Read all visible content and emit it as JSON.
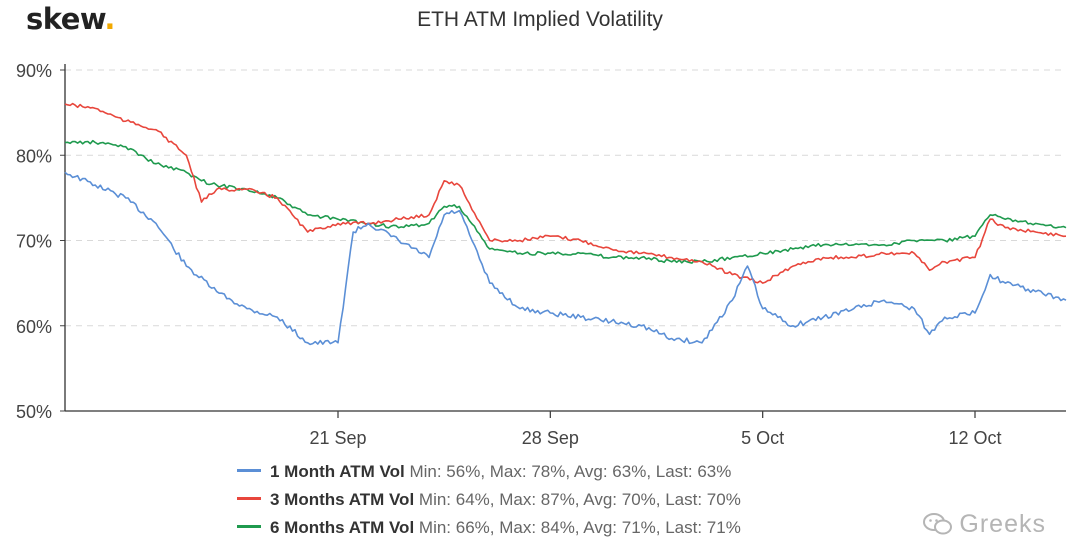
{
  "brand": {
    "name": "skew",
    "dot": "."
  },
  "watermark": {
    "text": "Greeks",
    "icon": "wechat-icon"
  },
  "colors": {
    "series1": "#5b8fd6",
    "series2": "#e8463c",
    "series3": "#1f9a4e",
    "grid": "#d9d9d9",
    "axis": "#333333"
  },
  "chart_data": {
    "type": "line",
    "title": "ETH ATM Implied Volatility",
    "y_axis": {
      "ticks": [
        "50%",
        "60%",
        "70%",
        "80%",
        "90%"
      ],
      "min": 50,
      "max": 90
    },
    "x_axis": {
      "start": "2020-09-12",
      "end": "2020-10-15",
      "tick_labels": [
        "21 Sep",
        "28 Sep",
        "5 Oct",
        "12 Oct"
      ],
      "tick_dates": [
        "2020-09-21",
        "2020-09-28",
        "2020-10-05",
        "2020-10-12"
      ]
    },
    "grid": true,
    "legend_position": "bottom",
    "series": [
      {
        "name": "1 Month ATM Vol",
        "stats": "Min: 56%, Max: 78%, Avg: 63%, Last: 63%",
        "points": [
          [
            "2020-09-12",
            78
          ],
          [
            "2020-09-13",
            76.5
          ],
          [
            "2020-09-14",
            75
          ],
          [
            "2020-09-15",
            72
          ],
          [
            "2020-09-16",
            67
          ],
          [
            "2020-09-17",
            64
          ],
          [
            "2020-09-18",
            62
          ],
          [
            "2020-09-19",
            61
          ],
          [
            "2020-09-20",
            58
          ],
          [
            "2020-09-21",
            58
          ],
          [
            "2020-09-21 12:00",
            71
          ],
          [
            "2020-09-22",
            72
          ],
          [
            "2020-09-23",
            70
          ],
          [
            "2020-09-24",
            68
          ],
          [
            "2020-09-24 12:00",
            73
          ],
          [
            "2020-09-25",
            73.5
          ],
          [
            "2020-09-26",
            65
          ],
          [
            "2020-09-27",
            62
          ],
          [
            "2020-09-28",
            61.5
          ],
          [
            "2020-09-29",
            61
          ],
          [
            "2020-09-30",
            60.5
          ],
          [
            "2020-10-01",
            60
          ],
          [
            "2020-10-02",
            58.5
          ],
          [
            "2020-10-03",
            58
          ],
          [
            "2020-10-04",
            63
          ],
          [
            "2020-10-04 12:00",
            67
          ],
          [
            "2020-10-05",
            62
          ],
          [
            "2020-10-06",
            60
          ],
          [
            "2020-10-07",
            61
          ],
          [
            "2020-10-08",
            62
          ],
          [
            "2020-10-09",
            63
          ],
          [
            "2020-10-10",
            62
          ],
          [
            "2020-10-10 12:00",
            59
          ],
          [
            "2020-10-11",
            61
          ],
          [
            "2020-10-12",
            61.5
          ],
          [
            "2020-10-12 12:00",
            66
          ],
          [
            "2020-10-13",
            65
          ],
          [
            "2020-10-14",
            64
          ],
          [
            "2020-10-15",
            63
          ]
        ]
      },
      {
        "name": "3 Months ATM Vol",
        "stats": "Min: 64%, Max: 87%, Avg: 70%, Last: 70%",
        "points": [
          [
            "2020-09-12",
            86
          ],
          [
            "2020-09-13",
            85.5
          ],
          [
            "2020-09-14",
            84
          ],
          [
            "2020-09-15",
            83
          ],
          [
            "2020-09-16",
            80
          ],
          [
            "2020-09-16 12:00",
            74.5
          ],
          [
            "2020-09-17",
            76
          ],
          [
            "2020-09-18",
            76
          ],
          [
            "2020-09-19",
            75
          ],
          [
            "2020-09-20",
            71
          ],
          [
            "2020-09-21",
            72
          ],
          [
            "2020-09-22",
            72
          ],
          [
            "2020-09-23",
            72.5
          ],
          [
            "2020-09-24",
            73
          ],
          [
            "2020-09-24 12:00",
            77
          ],
          [
            "2020-09-25",
            76.5
          ],
          [
            "2020-09-26",
            70
          ],
          [
            "2020-09-27",
            70
          ],
          [
            "2020-09-28",
            70.5
          ],
          [
            "2020-09-29",
            70
          ],
          [
            "2020-09-30",
            69
          ],
          [
            "2020-10-01",
            68.5
          ],
          [
            "2020-10-02",
            68
          ],
          [
            "2020-10-03",
            67.5
          ],
          [
            "2020-10-04",
            66
          ],
          [
            "2020-10-05",
            65
          ],
          [
            "2020-10-06",
            67
          ],
          [
            "2020-10-07",
            68
          ],
          [
            "2020-10-08",
            68
          ],
          [
            "2020-10-09",
            68.5
          ],
          [
            "2020-10-10",
            68.5
          ],
          [
            "2020-10-10 12:00",
            66.5
          ],
          [
            "2020-10-11",
            67.5
          ],
          [
            "2020-10-12",
            68
          ],
          [
            "2020-10-12 12:00",
            72.5
          ],
          [
            "2020-10-13",
            71.5
          ],
          [
            "2020-10-14",
            71
          ],
          [
            "2020-10-15",
            70.5
          ]
        ]
      },
      {
        "name": "6 Months ATM Vol",
        "stats": "Min: 66%, Max: 84%, Avg: 71%, Last: 71%",
        "points": [
          [
            "2020-09-12",
            81.5
          ],
          [
            "2020-09-13",
            81.5
          ],
          [
            "2020-09-14",
            81
          ],
          [
            "2020-09-15",
            79
          ],
          [
            "2020-09-16",
            78
          ],
          [
            "2020-09-16 12:00",
            77
          ],
          [
            "2020-09-17",
            76.5
          ],
          [
            "2020-09-18",
            76
          ],
          [
            "2020-09-19",
            75
          ],
          [
            "2020-09-20",
            73
          ],
          [
            "2020-09-21",
            72.5
          ],
          [
            "2020-09-22",
            72
          ],
          [
            "2020-09-23",
            71.5
          ],
          [
            "2020-09-24",
            72
          ],
          [
            "2020-09-24 12:00",
            74
          ],
          [
            "2020-09-25",
            74
          ],
          [
            "2020-09-26",
            69
          ],
          [
            "2020-09-27",
            68.5
          ],
          [
            "2020-09-28",
            68.5
          ],
          [
            "2020-09-29",
            68.5
          ],
          [
            "2020-09-30",
            68
          ],
          [
            "2020-10-01",
            68
          ],
          [
            "2020-10-02",
            67.5
          ],
          [
            "2020-10-03",
            67.5
          ],
          [
            "2020-10-04",
            68
          ],
          [
            "2020-10-05",
            68.5
          ],
          [
            "2020-10-06",
            69
          ],
          [
            "2020-10-07",
            69.5
          ],
          [
            "2020-10-08",
            69.5
          ],
          [
            "2020-10-09",
            69.5
          ],
          [
            "2020-10-10",
            70
          ],
          [
            "2020-10-11",
            70
          ],
          [
            "2020-10-12",
            70.5
          ],
          [
            "2020-10-12 12:00",
            73
          ],
          [
            "2020-10-13",
            72.5
          ],
          [
            "2020-10-14",
            72
          ],
          [
            "2020-10-15",
            71.5
          ]
        ]
      }
    ]
  }
}
